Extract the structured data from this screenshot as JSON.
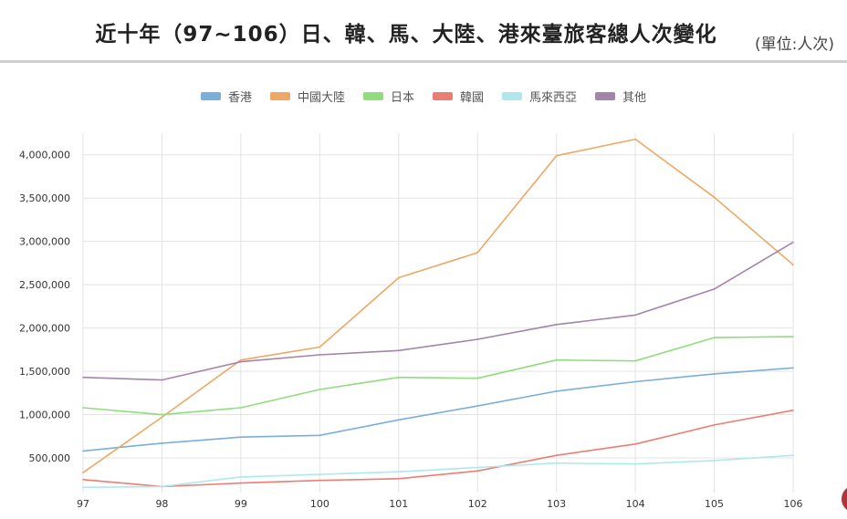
{
  "header": {
    "title": "近十年（97~106）日、韓、馬、大陸、港來臺旅客總人次變化",
    "unit": "(單位:人次)"
  },
  "chart_data": {
    "type": "line",
    "title": "近十年（97~106）日、韓、馬、大陸、港來臺旅客總人次變化",
    "unit": "(單位:人次)",
    "categories": [
      "97",
      "98",
      "99",
      "100",
      "101",
      "102",
      "103",
      "104",
      "105",
      "106"
    ],
    "ylim": [
      100000,
      4250000
    ],
    "yticks": [
      500000,
      1000000,
      1500000,
      2000000,
      2500000,
      3000000,
      3500000,
      4000000
    ],
    "ytick_labels": [
      "500,000",
      "1,000,000",
      "1,500,000",
      "2,000,000",
      "2,500,000",
      "3,000,000",
      "3,500,000",
      "4,000,000"
    ],
    "grid": true,
    "legend_position": "top",
    "series": [
      {
        "name": "香港",
        "color": "#7aaedb",
        "values": [
          580000,
          670000,
          740000,
          760000,
          940000,
          1100000,
          1270000,
          1380000,
          1470000,
          1540000
        ]
      },
      {
        "name": "中國大陸",
        "color": "#efa764",
        "values": [
          330000,
          970000,
          1630000,
          1780000,
          2580000,
          2870000,
          3990000,
          4180000,
          3510000,
          2730000
        ]
      },
      {
        "name": "日本",
        "color": "#8fdd7d",
        "values": [
          1080000,
          1000000,
          1080000,
          1290000,
          1430000,
          1420000,
          1630000,
          1620000,
          1890000,
          1900000
        ]
      },
      {
        "name": "韓國",
        "color": "#ec7d74",
        "values": [
          250000,
          170000,
          210000,
          240000,
          260000,
          350000,
          530000,
          660000,
          880000,
          1050000
        ]
      },
      {
        "name": "馬來西亞",
        "color": "#aee8ec",
        "values": [
          160000,
          170000,
          280000,
          310000,
          340000,
          390000,
          440000,
          430000,
          470000,
          530000
        ]
      },
      {
        "name": "其他",
        "color": "#a484aa",
        "values": [
          1430000,
          1400000,
          1610000,
          1690000,
          1740000,
          1870000,
          2040000,
          2150000,
          2450000,
          2990000
        ]
      }
    ]
  }
}
